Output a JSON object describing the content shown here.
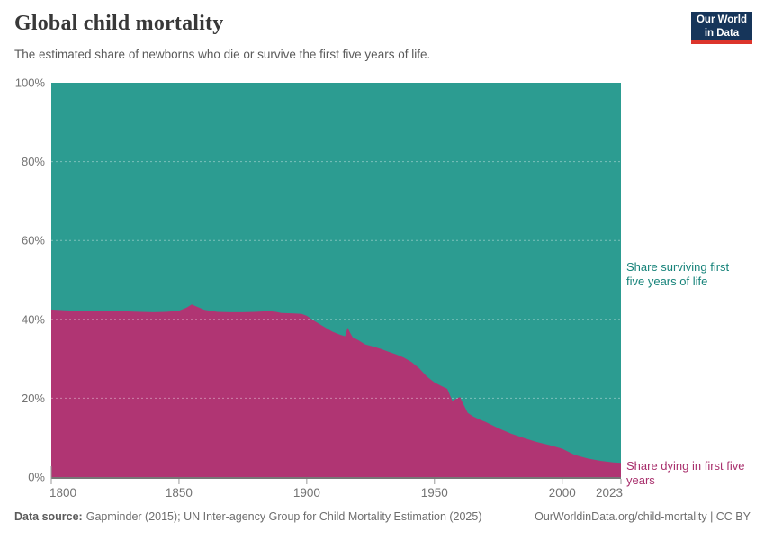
{
  "header": {
    "title": "Global child mortality",
    "subtitle": "The estimated share of newborns who die or survive the first five years of life.",
    "logo": {
      "line1": "Our World",
      "line2": "in Data",
      "bg_color": "#16355a",
      "accent_color": "#dc352c"
    }
  },
  "chart_data": {
    "type": "area",
    "stacked": true,
    "unit": "%",
    "title": "Global child mortality",
    "xlabel": "",
    "ylabel": "",
    "xlim": [
      1800,
      2023
    ],
    "ylim": [
      0,
      100
    ],
    "grid": "dashed horizontal at 20/40/60/80",
    "legend_position": "right edge, colored series labels",
    "x": [
      1800,
      1805,
      1810,
      1815,
      1820,
      1825,
      1830,
      1835,
      1840,
      1845,
      1850,
      1853,
      1855,
      1857,
      1860,
      1865,
      1870,
      1875,
      1880,
      1885,
      1888,
      1890,
      1895,
      1898,
      1900,
      1903,
      1906,
      1910,
      1913,
      1915,
      1916,
      1917,
      1918,
      1920,
      1923,
      1926,
      1929,
      1932,
      1935,
      1938,
      1941,
      1944,
      1947,
      1950,
      1953,
      1955,
      1957,
      1958,
      1960,
      1961,
      1963,
      1965,
      1968,
      1970,
      1975,
      1980,
      1985,
      1990,
      1995,
      2000,
      2005,
      2010,
      2015,
      2020,
      2023
    ],
    "series": [
      {
        "name": "Share dying in first five years",
        "color": "#b03573",
        "label_color": "#a82f6c",
        "values": [
          42.5,
          42.3,
          42.2,
          42.1,
          42.0,
          42.0,
          42.0,
          41.9,
          41.8,
          41.9,
          42.2,
          43.0,
          43.8,
          43.2,
          42.4,
          41.9,
          41.8,
          41.8,
          41.9,
          42.1,
          41.9,
          41.6,
          41.5,
          41.4,
          40.9,
          39.6,
          38.4,
          36.9,
          36.1,
          35.7,
          37.9,
          36.6,
          35.4,
          34.8,
          33.6,
          33.1,
          32.5,
          31.8,
          31.1,
          30.3,
          29.2,
          27.6,
          25.5,
          24.0,
          23.0,
          22.4,
          19.3,
          19.7,
          20.3,
          18.9,
          16.3,
          15.4,
          14.5,
          14.0,
          12.4,
          11.0,
          9.9,
          8.9,
          8.1,
          7.2,
          5.6,
          4.7,
          4.1,
          3.7,
          3.6
        ]
      },
      {
        "name": "Share surviving first five years of life",
        "color": "#2c9c91",
        "label_color": "#17837a",
        "values": [
          57.5,
          57.7,
          57.8,
          57.9,
          58.0,
          58.0,
          58.0,
          58.1,
          58.2,
          58.1,
          57.8,
          57.0,
          56.2,
          56.8,
          57.6,
          58.1,
          58.2,
          58.2,
          58.1,
          57.9,
          58.1,
          58.4,
          58.5,
          58.6,
          59.1,
          60.4,
          61.6,
          63.1,
          63.9,
          64.3,
          62.1,
          63.4,
          64.6,
          65.2,
          66.4,
          66.9,
          67.5,
          68.2,
          68.9,
          69.7,
          70.8,
          72.4,
          74.5,
          76.0,
          77.0,
          77.6,
          80.7,
          80.3,
          79.7,
          81.1,
          83.7,
          84.6,
          85.5,
          86.0,
          87.6,
          89.0,
          90.1,
          91.1,
          91.9,
          92.8,
          94.4,
          95.3,
          95.9,
          96.3,
          96.4
        ]
      }
    ],
    "x_ticks": [
      {
        "value": 1800,
        "label": "1800"
      },
      {
        "value": 1850,
        "label": "1850"
      },
      {
        "value": 1900,
        "label": "1900"
      },
      {
        "value": 1950,
        "label": "1950"
      },
      {
        "value": 2000,
        "label": "2000"
      },
      {
        "value": 2023,
        "label": "2023"
      }
    ],
    "y_ticks": [
      {
        "value": 0,
        "label": "0%"
      },
      {
        "value": 20,
        "label": "20%"
      },
      {
        "value": 40,
        "label": "40%"
      },
      {
        "value": 60,
        "label": "60%"
      },
      {
        "value": 80,
        "label": "80%"
      },
      {
        "value": 100,
        "label": "100%"
      }
    ],
    "tick_label_color": "#737373",
    "axis_line_color": "#4a4a4a"
  },
  "footer": {
    "source_label": "Data source:",
    "source_text": "Gapminder (2015); UN Inter-agency Group for Child Mortality Estimation (2025)",
    "link": "OurWorldinData.org/child-mortality | CC BY"
  }
}
